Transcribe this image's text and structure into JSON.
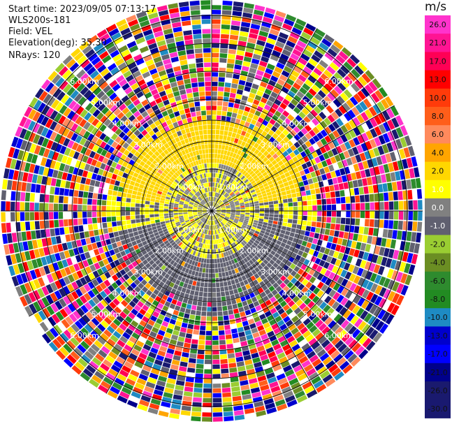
{
  "header": {
    "start_time": "Start time: 2023/09/05 07:13:17",
    "instrument": "WLS200s-181",
    "field": "Field: VEL",
    "elevation": "Elevation(deg): 35.30",
    "nrays": "NRays: 120"
  },
  "colorbar": {
    "unit": "m/s",
    "ticks": [
      "26.0",
      "21.0",
      "17.0",
      "13.0",
      "10.0",
      "8.0",
      "6.0",
      "4.0",
      "2.0",
      "1.0",
      "0.0",
      "-1.0",
      "-2.0",
      "-4.0",
      "-6.0",
      "-8.0",
      "-10.0",
      "-13.0",
      "-17.0",
      "-21.0",
      "-26.0",
      "-30.0"
    ],
    "colors": [
      "#ff33cc",
      "#ff1493",
      "#ff0055",
      "#ff0000",
      "#ff3b0a",
      "#ff5e1a",
      "#ff8a5c",
      "#ffa500",
      "#ffd700",
      "#ffff00",
      "#808080",
      "#606070",
      "#9acd32",
      "#6b8e23",
      "#2e8b2e",
      "#228b22",
      "#1e8bc3",
      "#0000cd",
      "#0000ff",
      "#00008b",
      "#1a1a6e",
      "#191970"
    ]
  },
  "chart_data": {
    "type": "heatmap",
    "projection": "polar (PPI scan)",
    "field": "VEL",
    "units": "m/s",
    "rays": 120,
    "range_rings_labels": [
      "1.00km",
      "2.00km",
      "3.00km",
      "4.00km",
      "5.00km",
      "6.00km"
    ],
    "ring_label_text": [
      "1.00km",
      "2.00km",
      "3.00km",
      "4.00km",
      "5.00km",
      "6.00km"
    ],
    "inner_region": {
      "north_sector_mean": 2.0,
      "center_mean": 0.0,
      "south_sector_mean": -2.0
    },
    "outer_region": "noise (random velocities across full colour scale)",
    "vmin": -30.0,
    "vmax": 26.0
  }
}
